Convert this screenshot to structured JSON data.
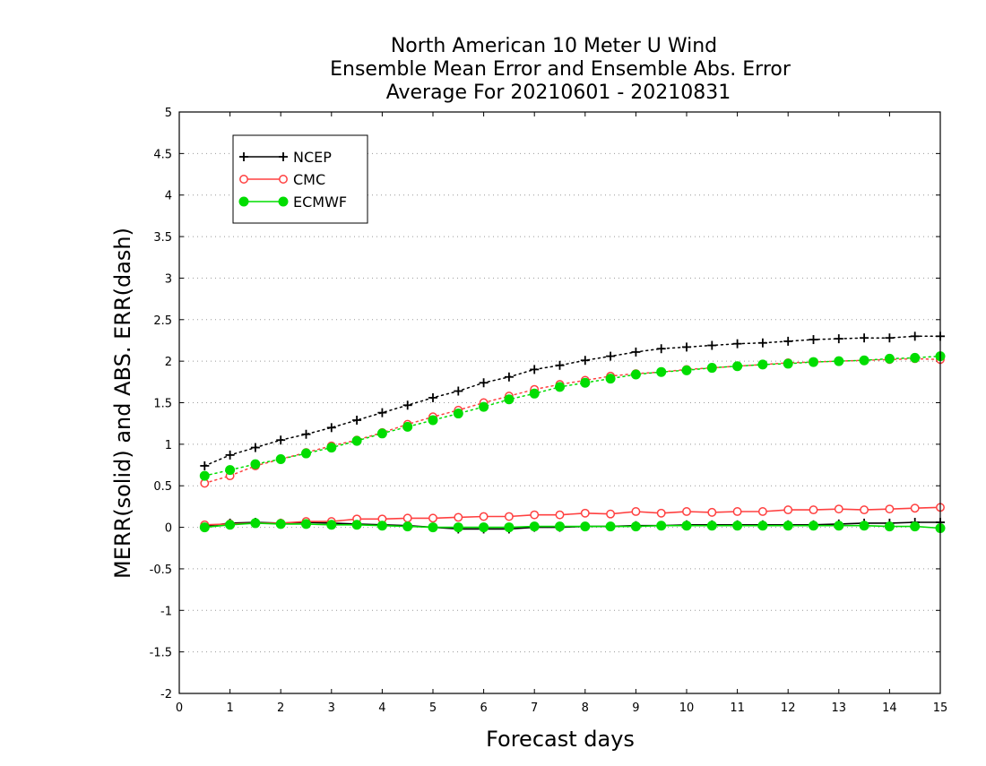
{
  "chart_data": {
    "type": "line",
    "title_lines": [
      "North American 10 Meter U Wind",
      "Ensemble Mean Error and Ensemble Abs. Error",
      "Average For 20210601 - 20210831"
    ],
    "xlabel": "Forecast days",
    "ylabel": "MERR(solid) and ABS. ERR(dash)",
    "xlim": [
      0,
      15
    ],
    "ylim": [
      -2,
      5
    ],
    "x_ticks": [
      "0",
      "1",
      "2",
      "3",
      "4",
      "5",
      "6",
      "7",
      "8",
      "9",
      "10",
      "11",
      "12",
      "13",
      "14",
      "15"
    ],
    "y_ticks": [
      "5",
      "4.5",
      "4",
      "3.5",
      "3",
      "2.5",
      "2",
      "1.5",
      "1",
      "0.5",
      "0",
      "-0.5",
      "-1",
      "-1.5",
      "-2"
    ],
    "grid": "horizontal dotted",
    "legend_position": "top-left",
    "x": [
      0.5,
      1,
      1.5,
      2,
      2.5,
      3,
      3.5,
      4,
      4.5,
      5,
      5.5,
      6,
      6.5,
      7,
      7.5,
      8,
      8.5,
      9,
      9.5,
      10,
      10.5,
      11,
      11.5,
      12,
      12.5,
      13,
      13.5,
      14,
      14.5,
      15
    ],
    "series": [
      {
        "name": "NCEP",
        "color": "#000000",
        "marker": "plus",
        "merr": [
          0.01,
          0.05,
          0.06,
          0.05,
          0.06,
          0.05,
          0.04,
          0.03,
          0.02,
          0.0,
          -0.02,
          -0.02,
          -0.02,
          0.0,
          0.0,
          0.01,
          0.01,
          0.02,
          0.02,
          0.03,
          0.03,
          0.03,
          0.03,
          0.03,
          0.03,
          0.04,
          0.05,
          0.05,
          0.06,
          0.06
        ],
        "abs_err": [
          0.74,
          0.87,
          0.96,
          1.05,
          1.12,
          1.2,
          1.29,
          1.38,
          1.47,
          1.56,
          1.64,
          1.74,
          1.81,
          1.9,
          1.95,
          2.01,
          2.06,
          2.11,
          2.15,
          2.17,
          2.19,
          2.21,
          2.22,
          2.24,
          2.26,
          2.27,
          2.28,
          2.28,
          2.3,
          2.3
        ]
      },
      {
        "name": "CMC",
        "color": "#ff4040",
        "marker": "open-circle",
        "merr": [
          0.03,
          0.04,
          0.05,
          0.05,
          0.07,
          0.07,
          0.1,
          0.1,
          0.11,
          0.11,
          0.12,
          0.13,
          0.13,
          0.15,
          0.15,
          0.17,
          0.16,
          0.19,
          0.17,
          0.19,
          0.18,
          0.19,
          0.19,
          0.21,
          0.21,
          0.22,
          0.21,
          0.22,
          0.23,
          0.24
        ],
        "abs_err": [
          0.53,
          0.62,
          0.74,
          0.82,
          0.9,
          0.98,
          1.05,
          1.14,
          1.24,
          1.33,
          1.41,
          1.5,
          1.58,
          1.66,
          1.72,
          1.77,
          1.82,
          1.85,
          1.87,
          1.9,
          1.92,
          1.94,
          1.96,
          1.98,
          1.99,
          2.0,
          2.01,
          2.02,
          2.03,
          2.02
        ]
      },
      {
        "name": "ECMWF",
        "color": "#00dd00",
        "marker": "filled-circle",
        "merr": [
          0.0,
          0.03,
          0.05,
          0.04,
          0.04,
          0.03,
          0.03,
          0.02,
          0.01,
          0.0,
          0.0,
          0.0,
          0.0,
          0.01,
          0.01,
          0.01,
          0.01,
          0.01,
          0.02,
          0.02,
          0.02,
          0.02,
          0.02,
          0.02,
          0.02,
          0.02,
          0.02,
          0.01,
          0.01,
          -0.01
        ],
        "abs_err": [
          0.62,
          0.69,
          0.76,
          0.82,
          0.89,
          0.96,
          1.04,
          1.13,
          1.21,
          1.29,
          1.37,
          1.45,
          1.54,
          1.61,
          1.69,
          1.74,
          1.79,
          1.84,
          1.87,
          1.89,
          1.92,
          1.94,
          1.96,
          1.97,
          1.99,
          2.0,
          2.01,
          2.03,
          2.04,
          2.06
        ]
      }
    ]
  }
}
